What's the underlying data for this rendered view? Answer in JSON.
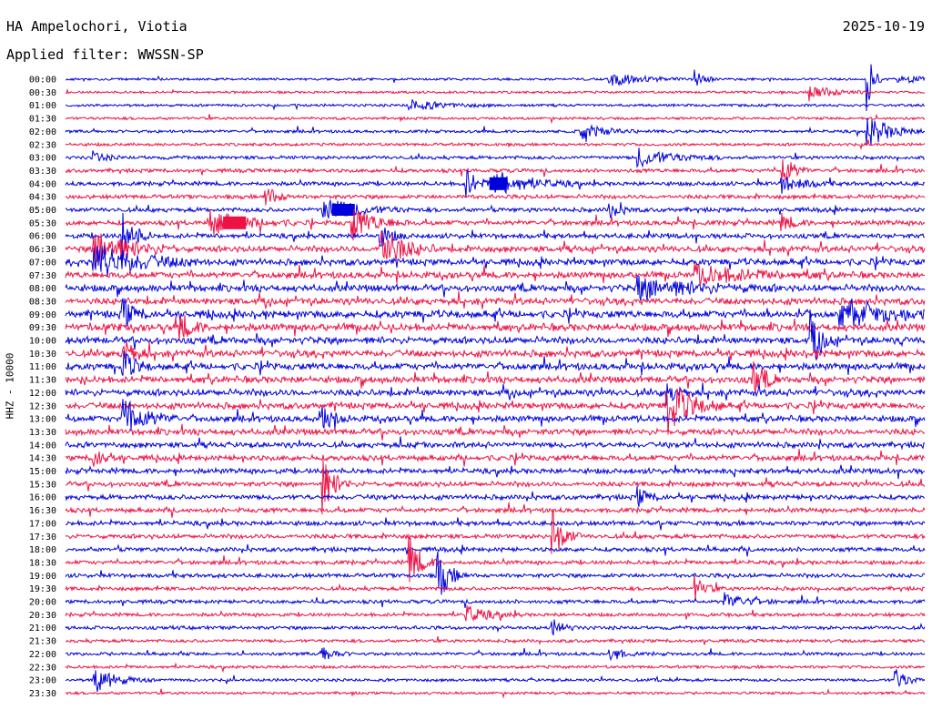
{
  "header": {
    "station": "HA Ampelochori, Viotia",
    "date": "2025-10-19",
    "filter": "Applied filter: WWSSN-SP"
  },
  "chart_data": {
    "type": "line",
    "title": "HA Ampelochori, Viotia",
    "ylabel": "HHZ - 10000",
    "trace_colors": [
      "#0000dd",
      "#ee1144"
    ],
    "tick_labels": [
      "00:00",
      "00:30",
      "01:00",
      "01:30",
      "02:00",
      "02:30",
      "03:00",
      "03:30",
      "04:00",
      "04:30",
      "05:00",
      "05:30",
      "06:00",
      "06:30",
      "07:00",
      "07:30",
      "08:00",
      "08:30",
      "09:00",
      "09:30",
      "10:00",
      "10:30",
      "11:00",
      "11:30",
      "12:00",
      "12:30",
      "13:00",
      "13:30",
      "14:00",
      "14:30",
      "15:00",
      "15:30",
      "16:00",
      "16:30",
      "17:00",
      "17:30",
      "18:00",
      "18:30",
      "19:00",
      "19:30",
      "20:00",
      "20:30",
      "21:00",
      "21:30",
      "22:00",
      "22:30",
      "23:00",
      "23:30"
    ],
    "activity_level": [
      0.15,
      0.15,
      0.2,
      0.2,
      0.25,
      0.25,
      0.35,
      0.4,
      0.45,
      0.45,
      0.5,
      0.6,
      0.6,
      0.8,
      0.85,
      0.85,
      0.9,
      0.9,
      1.0,
      1.0,
      0.95,
      0.95,
      0.9,
      0.9,
      0.9,
      0.85,
      0.8,
      0.8,
      0.7,
      0.7,
      0.65,
      0.6,
      0.6,
      0.55,
      0.55,
      0.5,
      0.5,
      0.45,
      0.45,
      0.4,
      0.4,
      0.35,
      0.35,
      0.3,
      0.3,
      0.25,
      0.25,
      0.2
    ],
    "events": [
      {
        "row": 0,
        "minute": 19,
        "amplitude": 7,
        "duration": 3
      },
      {
        "row": 0,
        "minute": 22,
        "amplitude": 8,
        "duration": 1
      },
      {
        "row": 0,
        "minute": 28,
        "amplitude": 38,
        "duration": 0.5
      },
      {
        "row": 0,
        "minute": 29,
        "amplitude": 6,
        "duration": 2
      },
      {
        "row": 1,
        "minute": 26,
        "amplitude": 9,
        "duration": 2
      },
      {
        "row": 2,
        "minute": 12,
        "amplitude": 6,
        "duration": 3
      },
      {
        "row": 4,
        "minute": 18,
        "amplitude": 9,
        "duration": 2
      },
      {
        "row": 4,
        "minute": 28,
        "amplitude": 18,
        "duration": 2
      },
      {
        "row": 6,
        "minute": 1,
        "amplitude": 6,
        "duration": 1
      },
      {
        "row": 6,
        "minute": 20,
        "amplitude": 10,
        "duration": 3
      },
      {
        "row": 7,
        "minute": 25,
        "amplitude": 20,
        "duration": 1
      },
      {
        "row": 8,
        "minute": 14,
        "amplitude": 16,
        "duration": 1
      },
      {
        "row": 8,
        "minute": 15,
        "amplitude": 14,
        "duration": 3
      },
      {
        "row": 8,
        "minute": 25,
        "amplitude": 9,
        "duration": 2
      },
      {
        "row": 9,
        "minute": 7,
        "amplitude": 12,
        "duration": 1
      },
      {
        "row": 10,
        "minute": 9,
        "amplitude": 14,
        "duration": 3
      },
      {
        "row": 10,
        "minute": 19,
        "amplitude": 10,
        "duration": 1
      },
      {
        "row": 11,
        "minute": 5,
        "amplitude": 14,
        "duration": 3
      },
      {
        "row": 11,
        "minute": 10,
        "amplitude": 18,
        "duration": 2
      },
      {
        "row": 11,
        "minute": 25,
        "amplitude": 10,
        "duration": 1
      },
      {
        "row": 12,
        "minute": 2,
        "amplitude": 30,
        "duration": 1
      },
      {
        "row": 12,
        "minute": 11,
        "amplitude": 12,
        "duration": 1
      },
      {
        "row": 13,
        "minute": 1,
        "amplitude": 22,
        "duration": 3
      },
      {
        "row": 13,
        "minute": 11,
        "amplitude": 25,
        "duration": 2
      },
      {
        "row": 14,
        "minute": 1,
        "amplitude": 20,
        "duration": 4
      },
      {
        "row": 15,
        "minute": 22,
        "amplitude": 10,
        "duration": 5
      },
      {
        "row": 16,
        "minute": 20,
        "amplitude": 12,
        "duration": 5
      },
      {
        "row": 18,
        "minute": 2,
        "amplitude": 18,
        "duration": 1
      },
      {
        "row": 18,
        "minute": 27,
        "amplitude": 12,
        "duration": 6
      },
      {
        "row": 19,
        "minute": 4,
        "amplitude": 16,
        "duration": 1
      },
      {
        "row": 20,
        "minute": 26,
        "amplitude": 26,
        "duration": 1
      },
      {
        "row": 21,
        "minute": 2,
        "amplitude": 16,
        "duration": 1
      },
      {
        "row": 22,
        "minute": 2,
        "amplitude": 18,
        "duration": 1
      },
      {
        "row": 23,
        "minute": 24,
        "amplitude": 22,
        "duration": 1
      },
      {
        "row": 24,
        "minute": 21,
        "amplitude": 12,
        "duration": 1
      },
      {
        "row": 25,
        "minute": 21,
        "amplitude": 30,
        "duration": 2
      },
      {
        "row": 26,
        "minute": 2,
        "amplitude": 22,
        "duration": 2
      },
      {
        "row": 26,
        "minute": 9,
        "amplitude": 14,
        "duration": 1
      },
      {
        "row": 29,
        "minute": 1,
        "amplitude": 10,
        "duration": 1
      },
      {
        "row": 31,
        "minute": 9,
        "amplitude": 30,
        "duration": 1
      },
      {
        "row": 32,
        "minute": 20,
        "amplitude": 10,
        "duration": 1
      },
      {
        "row": 35,
        "minute": 17,
        "amplitude": 30,
        "duration": 1
      },
      {
        "row": 37,
        "minute": 12,
        "amplitude": 30,
        "duration": 1
      },
      {
        "row": 38,
        "minute": 13,
        "amplitude": 30,
        "duration": 1
      },
      {
        "row": 39,
        "minute": 22,
        "amplitude": 12,
        "duration": 1
      },
      {
        "row": 40,
        "minute": 23,
        "amplitude": 9,
        "duration": 2
      },
      {
        "row": 41,
        "minute": 14,
        "amplitude": 9,
        "duration": 2
      },
      {
        "row": 42,
        "minute": 17,
        "amplitude": 9,
        "duration": 1
      },
      {
        "row": 44,
        "minute": 9,
        "amplitude": 9,
        "duration": 1
      },
      {
        "row": 44,
        "minute": 19,
        "amplitude": 9,
        "duration": 1
      },
      {
        "row": 46,
        "minute": 1,
        "amplitude": 14,
        "duration": 2
      },
      {
        "row": 46,
        "minute": 29,
        "amplitude": 12,
        "duration": 1
      }
    ],
    "blocks": [
      {
        "row": 8,
        "minute": 14.8,
        "amplitude": 14,
        "duration": 0.6
      },
      {
        "row": 10,
        "minute": 9.3,
        "amplitude": 13,
        "duration": 0.8
      },
      {
        "row": 11,
        "minute": 5.5,
        "amplitude": 14,
        "duration": 0.8
      }
    ]
  }
}
